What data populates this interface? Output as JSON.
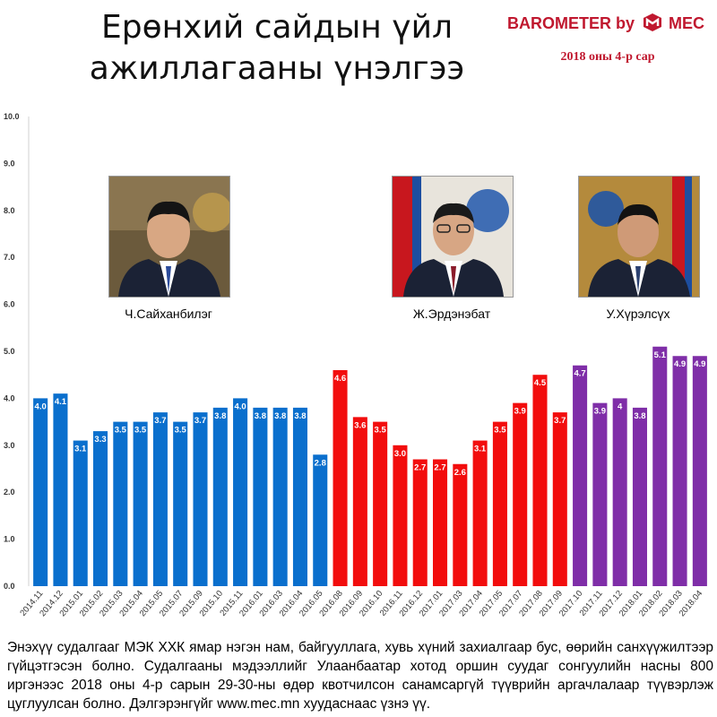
{
  "header": {
    "title_line1": "Ерөнхий сайдын үйл",
    "title_line2": "ажиллагааны үнэлгээ",
    "brand_prefix": "BAROMETER by",
    "brand_suffix": "MEC",
    "period": "2018 оны 4-р сар"
  },
  "people": [
    {
      "name": "Ч.Сайханбилэг",
      "icon": "portrait-icon"
    },
    {
      "name": "Ж.Эрдэнэбат",
      "icon": "portrait-icon"
    },
    {
      "name": "У.Хүрэлсүх",
      "icon": "portrait-icon"
    }
  ],
  "colors": {
    "blue": "#0a6fcd",
    "red": "#f20d0d",
    "purple": "#7f2ea8",
    "brand": "#c0182f"
  },
  "chart_data": {
    "type": "bar",
    "title": "Ерөнхий сайдын үйл ажиллагааны үнэлгээ",
    "xlabel": "",
    "ylabel": "",
    "ylim": [
      0,
      10
    ],
    "yticks": [
      "0.0",
      "1.0",
      "2.0",
      "3.0",
      "4.0",
      "5.0",
      "6.0",
      "7.0",
      "8.0",
      "9.0",
      "10.0"
    ],
    "grid": false,
    "categories": [
      "2014.11",
      "2014.12",
      "2015.01",
      "2015.02",
      "2015.03",
      "2015.04",
      "2015.05",
      "2015.07",
      "2015.09",
      "2015.10",
      "2015.11",
      "2016.01",
      "2016.03",
      "2016.04",
      "2016.05",
      "2016.08",
      "2016.09",
      "2016.10",
      "2016.11",
      "2016.12",
      "2017.01",
      "2017.03",
      "2017.04",
      "2017.05",
      "2017.07",
      "2017.08",
      "2017.09",
      "2017.10",
      "2017.11",
      "2017.12",
      "2018.01",
      "2018.02",
      "2018.03",
      "2018.04"
    ],
    "values": [
      4.0,
      4.1,
      3.1,
      3.3,
      3.5,
      3.5,
      3.7,
      3.5,
      3.7,
      3.8,
      4.0,
      3.8,
      3.8,
      3.8,
      2.8,
      4.6,
      3.6,
      3.5,
      3.0,
      2.7,
      2.7,
      2.6,
      3.1,
      3.5,
      3.9,
      4.5,
      3.7,
      4.7,
      3.9,
      4.0,
      3.8,
      5.1,
      4.9,
      4.9
    ],
    "labels": [
      "4.0",
      "4.1",
      "3.1",
      "3.3",
      "3.5",
      "3.5",
      "3.7",
      "3.5",
      "3.7",
      "3.8",
      "4.0",
      "3.8",
      "3.8",
      "3.8",
      "2.8",
      "4.6",
      "3.6",
      "3.5",
      "3.0",
      "2.7",
      "2.7",
      "2.6",
      "3.1",
      "3.5",
      "3.9",
      "4.5",
      "3.7",
      "4.7",
      "3.9",
      "4",
      "3.8",
      "5.1",
      "4.9",
      "4.9"
    ],
    "groups": [
      {
        "person": "Ч.Сайханбилэг",
        "from": 0,
        "to": 14,
        "color": "#0a6fcd"
      },
      {
        "person": "Ж.Эрдэнэбат",
        "from": 15,
        "to": 26,
        "color": "#f20d0d"
      },
      {
        "person": "У.Хүрэлсүх",
        "from": 27,
        "to": 33,
        "color": "#7f2ea8"
      }
    ]
  },
  "footer": {
    "text": "Энэхүү судалгааг МЭК ХХК ямар нэгэн нам, байгууллага, хувь хүний захиалгаар бус, өөрийн санхүүжилтээр гүйцэтгэсэн болно. Судалгааны мэдээллийг Улаанбаатар хотод оршин суудаг сонгуулийн насны 800 иргэнээс 2018 оны 4-р сарын 29-30-ны өдөр квотчилсон санамсаргүй түүврийн аргачлалаар түүвэрлэж цуглуулсан болно. Дэлгэрэнгүйг www.mec.mn хуудаснаас үзнэ үү."
  }
}
